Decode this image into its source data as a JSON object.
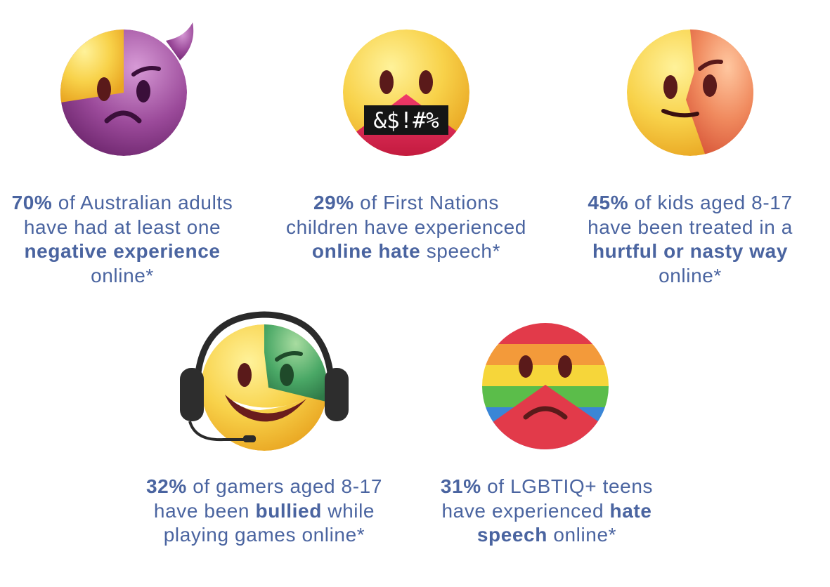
{
  "stats": [
    {
      "icon": "devil-face-icon",
      "parts": [
        {
          "text": "70%",
          "bold": true
        },
        {
          "text": " of Australian adults have had at least one ",
          "bold": false
        },
        {
          "text": "negative experience",
          "bold": true
        },
        {
          "text": " online*",
          "bold": false
        }
      ]
    },
    {
      "icon": "censored-mouth-face-icon",
      "grawlix": "&$!#%",
      "parts": [
        {
          "text": "29%",
          "bold": true
        },
        {
          "text": " of First Nations children have experienced ",
          "bold": false
        },
        {
          "text": "online hate",
          "bold": true
        },
        {
          "text": " speech*",
          "bold": false
        }
      ]
    },
    {
      "icon": "smirking-angry-face-icon",
      "parts": [
        {
          "text": "45%",
          "bold": true
        },
        {
          "text": " of kids aged 8-17 have been treated in a ",
          "bold": false
        },
        {
          "text": "hurtful or nasty way",
          "bold": true
        },
        {
          "text": " online*",
          "bold": false
        }
      ]
    },
    {
      "icon": "gamer-headset-face-icon",
      "parts": [
        {
          "text": "32%",
          "bold": true
        },
        {
          "text": " of gamers aged 8-17 have been ",
          "bold": false
        },
        {
          "text": "bullied",
          "bold": true
        },
        {
          "text": " while playing games online*",
          "bold": false
        }
      ]
    },
    {
      "icon": "rainbow-frowning-face-icon",
      "parts": [
        {
          "text": "31%",
          "bold": true
        },
        {
          "text": " of LGBTIQ+ teens have experienced ",
          "bold": false
        },
        {
          "text": "hate speech",
          "bold": true
        },
        {
          "text": " online*",
          "bold": false
        }
      ]
    }
  ],
  "colors": {
    "text": "#4a64a0",
    "emoji_yellow": "#f5c63a",
    "devil_purple": "#8c3a8c",
    "rage_orange": "#e8744a",
    "censor_red": "#d42a52",
    "goblin_green": "#3f9a5a"
  }
}
